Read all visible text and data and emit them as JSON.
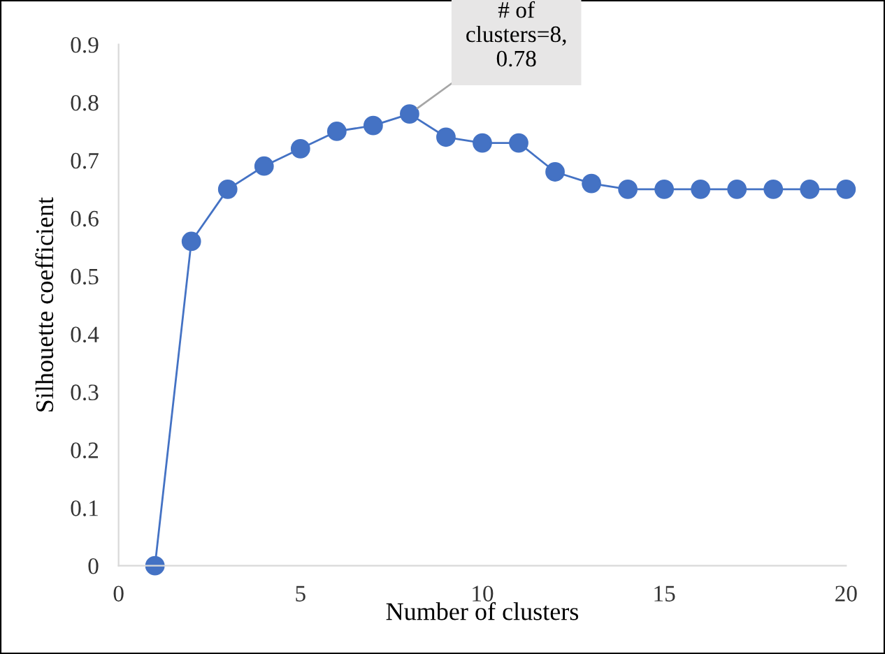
{
  "chart_data": {
    "type": "line",
    "xlabel": "Number of clusters",
    "ylabel": "Silhouette coefficient",
    "x": [
      1,
      2,
      3,
      4,
      5,
      6,
      7,
      8,
      9,
      10,
      11,
      12,
      13,
      14,
      15,
      16,
      17,
      18,
      19,
      20
    ],
    "series": [
      {
        "color": "#4472c4",
        "values": [
          0,
          0.56,
          0.65,
          0.69,
          0.72,
          0.75,
          0.76,
          0.78,
          0.74,
          0.73,
          0.73,
          0.68,
          0.66,
          0.65,
          0.65,
          0.65,
          0.65,
          0.65,
          0.65,
          0.65
        ]
      }
    ],
    "xlim": [
      0,
      20
    ],
    "xticks": [
      0,
      5,
      10,
      15,
      20
    ],
    "ylim": [
      0,
      0.9
    ],
    "yticks": [
      0,
      0.1,
      0.2,
      0.3,
      0.4,
      0.5,
      0.6,
      0.7,
      0.8,
      0.9
    ],
    "marker": "circle",
    "line_style": "solid",
    "grid": false,
    "legend": false,
    "annotations": [
      {
        "text": "# of\nclusters=8,\n0.78",
        "x": 8,
        "y": 0.78
      }
    ]
  }
}
